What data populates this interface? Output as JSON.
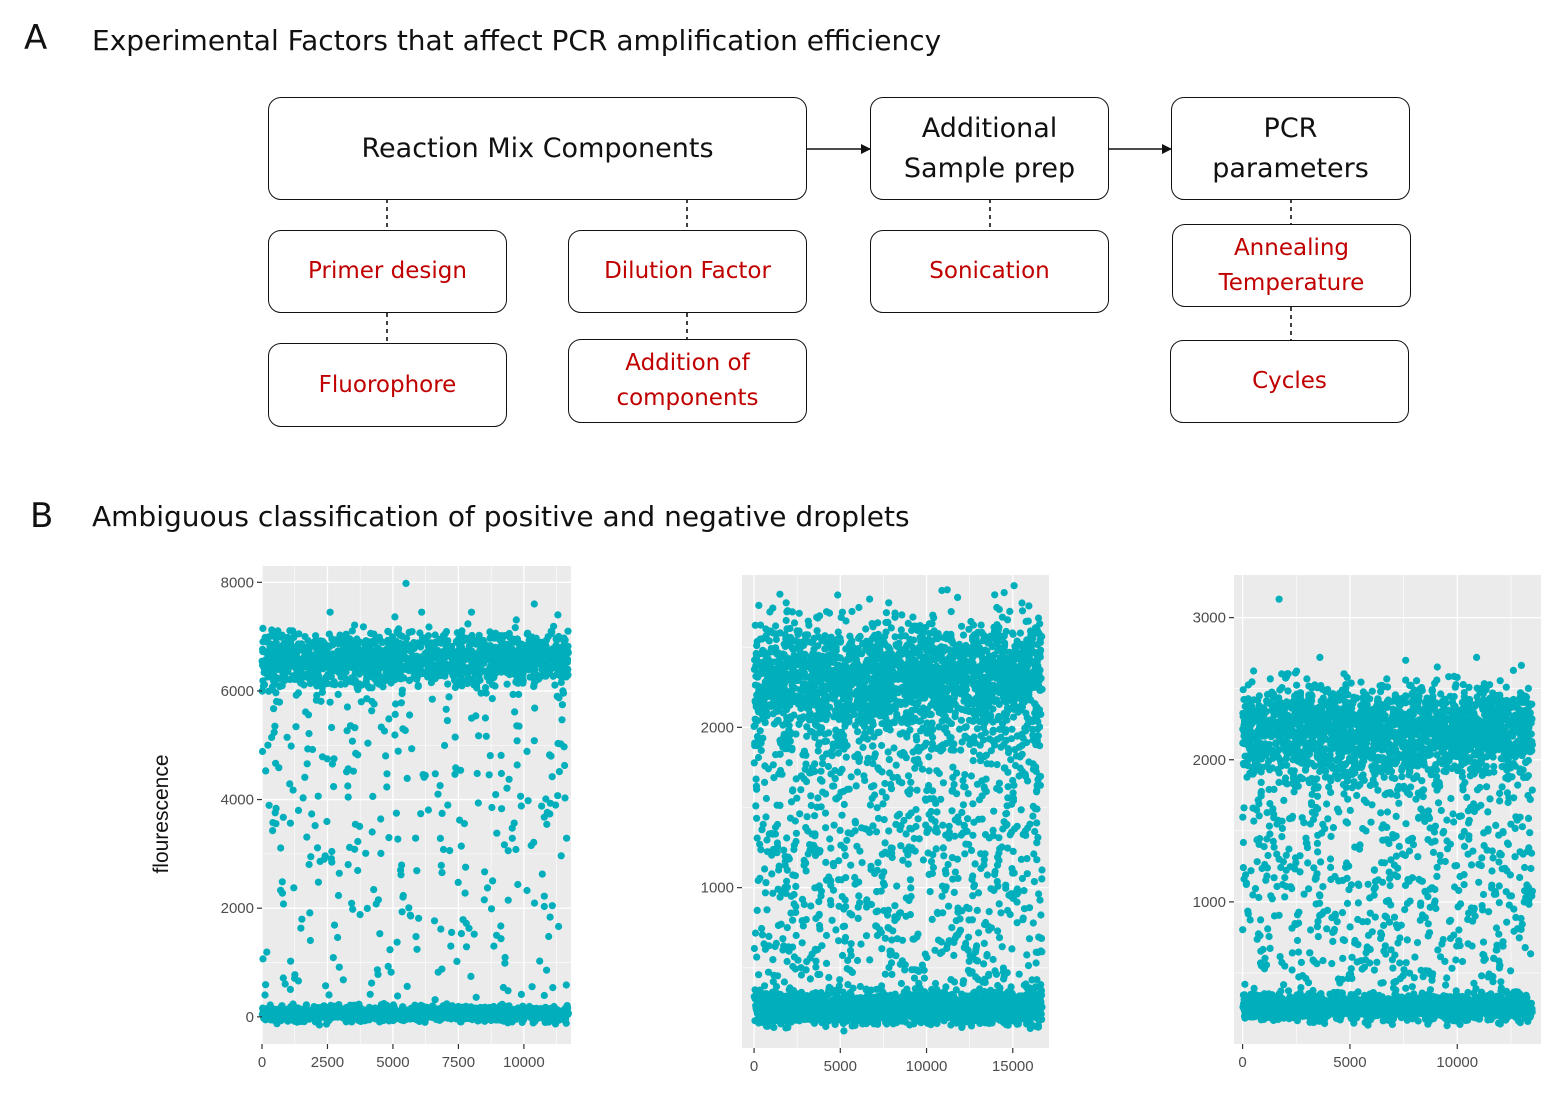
{
  "panel_a": {
    "letter": "A",
    "title": "Experimental Factors that affect PCR amplification efficiency",
    "main_boxes": [
      {
        "lines": [
          "Reaction Mix Components"
        ]
      },
      {
        "lines": [
          "Additional",
          "Sample prep"
        ]
      },
      {
        "lines": [
          "PCR",
          "parameters"
        ]
      }
    ],
    "factor_boxes": [
      {
        "lines": [
          "Primer design"
        ]
      },
      {
        "lines": [
          "Fluorophore"
        ]
      },
      {
        "lines": [
          "Dilution Factor"
        ]
      },
      {
        "lines": [
          "Addition of",
          "components"
        ]
      },
      {
        "lines": [
          "Sonication"
        ]
      },
      {
        "lines": [
          "Annealing",
          "Temperature"
        ]
      },
      {
        "lines": [
          "Cycles"
        ]
      }
    ],
    "factor_color": "#c00000"
  },
  "panel_b": {
    "letter": "B",
    "title": "Ambiguous classification of positive and negative droplets",
    "y_axis_label": "flourescence"
  },
  "chart_data": [
    {
      "type": "scatter",
      "point_color": "#00AFBB",
      "panel_background": "#EBEBEB",
      "grid": true,
      "xlim": [
        0,
        11800
      ],
      "ylim": [
        -500,
        8300
      ],
      "x_ticks": [
        0,
        2500,
        5000,
        7500,
        10000
      ],
      "x_tick_labels": [
        "0",
        "2500",
        "5000",
        "7500",
        "10000"
      ],
      "y_ticks": [
        0,
        2000,
        4000,
        6000,
        8000
      ],
      "y_tick_labels": [
        "0",
        "2000",
        "4000",
        "6000",
        "8000"
      ],
      "ylabel": "flourescence",
      "series": [
        {
          "cluster": "positive",
          "x_range": [
            0,
            11700
          ],
          "y_center": 6600,
          "y_spread": 250,
          "n_points": 1400
        },
        {
          "cluster": "negative",
          "x_range": [
            0,
            11700
          ],
          "y_center": 50,
          "y_spread": 70,
          "n_points": 1200
        },
        {
          "cluster": "intermediate",
          "x_range": [
            0,
            11700
          ],
          "y_range": [
            300,
            6300
          ],
          "n_points": 330
        },
        {
          "cluster": "outliers",
          "points": [
            [
              5500,
              7980
            ],
            [
              10400,
              7600
            ],
            [
              2600,
              7450
            ],
            [
              6100,
              7450
            ],
            [
              8000,
              7450
            ],
            [
              11300,
              7400
            ]
          ]
        }
      ]
    },
    {
      "type": "scatter",
      "point_color": "#00AFBB",
      "panel_background": "#EBEBEB",
      "grid": true,
      "xlim": [
        -700,
        17100
      ],
      "ylim": [
        0,
        2950
      ],
      "x_ticks": [
        0,
        5000,
        10000,
        15000
      ],
      "x_tick_labels": [
        "0",
        "5000",
        "10000",
        "15000"
      ],
      "y_ticks": [
        1000,
        2000
      ],
      "y_tick_labels": [
        "1000",
        "2000"
      ],
      "ylabel": "",
      "series": [
        {
          "cluster": "positive",
          "x_range": [
            0,
            16700
          ],
          "y_center": 2300,
          "y_spread": 180,
          "n_points": 2200
        },
        {
          "cluster": "negative",
          "x_range": [
            0,
            16700
          ],
          "y_center": 250,
          "y_spread": 50,
          "n_points": 1800
        },
        {
          "cluster": "intermediate",
          "x_range": [
            0,
            16700
          ],
          "y_range": [
            330,
            1950
          ],
          "n_points": 900
        },
        {
          "cluster": "outliers",
          "points": [
            [
              1500,
              2830
            ],
            [
              14500,
              2840
            ],
            [
              6700,
              2800
            ],
            [
              11800,
              2810
            ]
          ]
        }
      ]
    },
    {
      "type": "scatter",
      "point_color": "#00AFBB",
      "panel_background": "#EBEBEB",
      "grid": true,
      "xlim": [
        -400,
        13900
      ],
      "ylim": [
        0,
        3300
      ],
      "x_ticks": [
        0,
        5000,
        10000
      ],
      "x_tick_labels": [
        "0",
        "5000",
        "10000"
      ],
      "y_ticks": [
        1000,
        2000,
        3000
      ],
      "y_tick_labels": [
        "1000",
        "2000",
        "3000"
      ],
      "ylabel": "",
      "series": [
        {
          "cluster": "positive",
          "x_range": [
            0,
            13500
          ],
          "y_center": 2200,
          "y_spread": 160,
          "n_points": 2000
        },
        {
          "cluster": "negative",
          "x_range": [
            0,
            13500
          ],
          "y_center": 260,
          "y_spread": 45,
          "n_points": 1700
        },
        {
          "cluster": "intermediate",
          "x_range": [
            0,
            13500
          ],
          "y_range": [
            350,
            1900
          ],
          "n_points": 650
        },
        {
          "cluster": "outliers",
          "points": [
            [
              1700,
              3130
            ],
            [
              3600,
              2720
            ],
            [
              10900,
              2720
            ],
            [
              7600,
              2700
            ]
          ]
        }
      ]
    }
  ]
}
